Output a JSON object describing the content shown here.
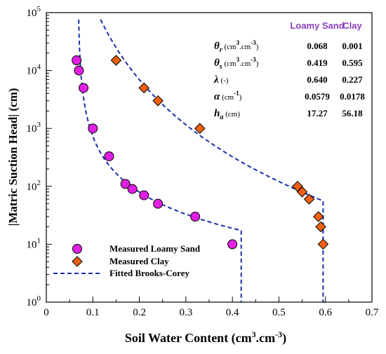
{
  "chart_data": {
    "type": "scatter",
    "x_axis": {
      "label": "Soil Water Content (cm",
      "label_sup": "3",
      "label_mid": ".cm",
      "label_sup2": "-3",
      "label_end": ")",
      "min": 0,
      "max": 0.7,
      "ticks": [
        0,
        0.1,
        0.2,
        0.3,
        0.4,
        0.5,
        0.6,
        0.7
      ],
      "tick_labels": [
        "0",
        "0.1",
        "0.2",
        "0.3",
        "0.4",
        "0.5",
        "0.6",
        "0.7"
      ]
    },
    "y_axis": {
      "label": "|Matric Suction Head| (cm)",
      "scale": "log",
      "min": 1,
      "max": 100000,
      "ticks": [
        1,
        10,
        100,
        1000,
        10000,
        100000
      ],
      "tick_labels": [
        {
          "base": "10",
          "exp": "0"
        },
        {
          "base": "10",
          "exp": "1"
        },
        {
          "base": "10",
          "exp": "2"
        },
        {
          "base": "10",
          "exp": "3"
        },
        {
          "base": "10",
          "exp": "4"
        },
        {
          "base": "10",
          "exp": "5"
        }
      ]
    },
    "series": [
      {
        "name": "Measured Loamy Sand",
        "marker": "circle",
        "color": "#e020e0",
        "points": [
          [
            0.065,
            15000
          ],
          [
            0.07,
            10000
          ],
          [
            0.08,
            5000
          ],
          [
            0.1,
            1000
          ],
          [
            0.135,
            330
          ],
          [
            0.17,
            110
          ],
          [
            0.185,
            90
          ],
          [
            0.21,
            70
          ],
          [
            0.24,
            50
          ],
          [
            0.32,
            30
          ],
          [
            0.4,
            10
          ]
        ]
      },
      {
        "name": "Measured Clay",
        "marker": "diamond",
        "color": "#f06010",
        "points": [
          [
            0.15,
            15000
          ],
          [
            0.21,
            5000
          ],
          [
            0.24,
            3000
          ],
          [
            0.33,
            1000
          ],
          [
            0.54,
            100
          ],
          [
            0.55,
            80
          ],
          [
            0.565,
            60
          ],
          [
            0.585,
            30
          ],
          [
            0.59,
            20
          ],
          [
            0.595,
            10
          ]
        ]
      },
      {
        "name": "Fitted Brooks-Corey",
        "style": "dashed",
        "color": "#1a2faa",
        "curves": [
          {
            "theta_r": 0.068,
            "theta_s": 0.419,
            "lambda": 0.64,
            "h_a": 17.27
          },
          {
            "theta_r": 0.001,
            "theta_s": 0.595,
            "lambda": 0.227,
            "h_a": 56.18
          }
        ]
      }
    ],
    "legend_position": "bottom-left",
    "grid": false
  },
  "param_table": {
    "headers": [
      "Loamy Sand",
      "Clay"
    ],
    "header_color": "#8b3fbf",
    "rows": [
      {
        "sym": "θ",
        "sub": "r",
        "unit_a": " (cm",
        "sup1": "3",
        "unit_b": ".cm",
        "sup2": "-3",
        "unit_c": ")",
        "values": [
          "0.068",
          "0.001"
        ]
      },
      {
        "sym": "θ",
        "sub": "s",
        "unit_a": " (cm",
        "sup1": "3",
        "unit_b": ".cm",
        "sup2": "-3",
        "unit_c": ")",
        "values": [
          "0.419",
          "0.595"
        ]
      },
      {
        "sym": "λ",
        "sub": "",
        "unit_a": " (-)",
        "sup1": "",
        "unit_b": "",
        "sup2": "",
        "unit_c": "",
        "values": [
          "0.640",
          "0.227"
        ]
      },
      {
        "sym": "α",
        "sub": "",
        "unit_a": " (cm",
        "sup1": "-1",
        "unit_b": ")",
        "sup2": "",
        "unit_c": "",
        "values": [
          "0.0579",
          "0.0178"
        ]
      },
      {
        "sym": "h",
        "sub": "a",
        "unit_a": " (cm)",
        "sup1": "",
        "unit_b": "",
        "sup2": "",
        "unit_c": "",
        "values": [
          "17.27",
          "56.18"
        ]
      }
    ]
  }
}
